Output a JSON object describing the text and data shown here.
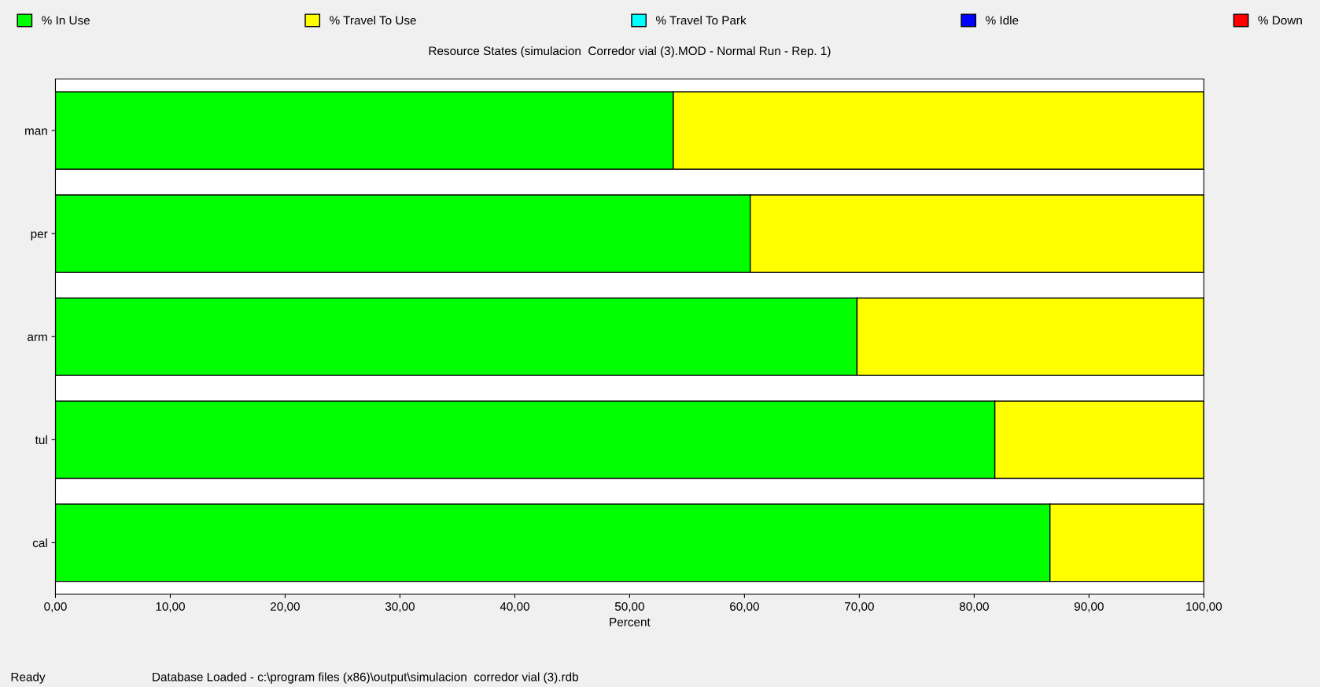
{
  "chart_data": {
    "type": "bar",
    "orientation": "horizontal",
    "stacked": true,
    "title": "Resource States (simulacion  Corredor vial (3).MOD - Normal Run - Rep. 1)",
    "xlabel": "Percent",
    "categories": [
      "man",
      "per",
      "arm",
      "tul",
      "cal"
    ],
    "series": [
      {
        "name": "% In Use",
        "color": "#00ff00",
        "values": [
          53.8,
          60.5,
          69.8,
          81.8,
          86.6
        ]
      },
      {
        "name": "% Travel To Use",
        "color": "#ffff00",
        "values": [
          46.2,
          39.5,
          30.2,
          18.2,
          13.4
        ]
      },
      {
        "name": "% Travel To Park",
        "color": "#00ffff",
        "values": [
          0,
          0,
          0,
          0,
          0
        ]
      },
      {
        "name": "% Idle",
        "color": "#0000ff",
        "values": [
          0,
          0,
          0,
          0,
          0
        ]
      },
      {
        "name": "% Down",
        "color": "#ff0000",
        "values": [
          0,
          0,
          0,
          0,
          0
        ]
      }
    ],
    "xlim": [
      0,
      100
    ],
    "xticks": [
      {
        "value": 0,
        "label": "0,00"
      },
      {
        "value": 10,
        "label": "10,00"
      },
      {
        "value": 20,
        "label": "20,00"
      },
      {
        "value": 30,
        "label": "30,00"
      },
      {
        "value": 40,
        "label": "40,00"
      },
      {
        "value": 50,
        "label": "50,00"
      },
      {
        "value": 60,
        "label": "60,00"
      },
      {
        "value": 70,
        "label": "70,00"
      },
      {
        "value": 80,
        "label": "80,00"
      },
      {
        "value": 90,
        "label": "90,00"
      },
      {
        "value": 100,
        "label": "100,00"
      }
    ],
    "legend": "top",
    "grid": false,
    "annotations": [
      "Ready",
      "Database Loaded - c:\\program files (x86)\\output\\simulacion  corredor vial (3).rdb"
    ]
  }
}
